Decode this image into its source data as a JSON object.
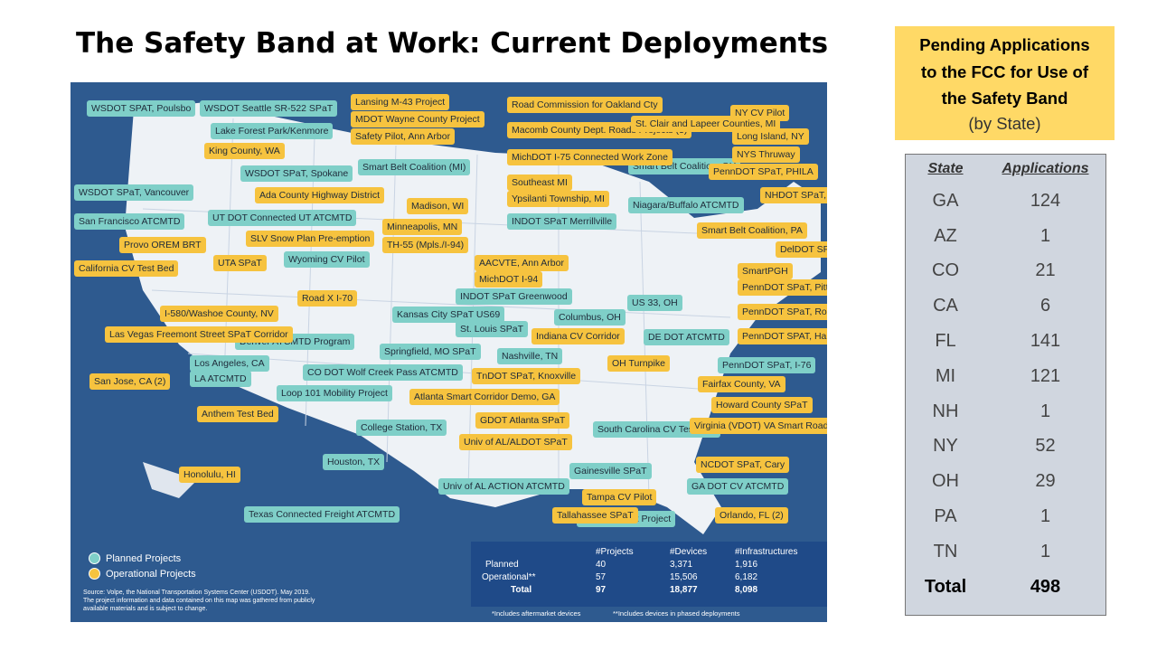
{
  "title": "The Safety Band at Work: Current Deployments",
  "map": {
    "labels_planned": [
      "WSDOT SPAT, Poulsbo",
      "WSDOT Seattle SR-522 SPaT",
      "Lake Forest Park/Kenmore",
      "WSDOT SPaT, Spokane",
      "WSDOT SPaT, Vancouver",
      "San Francisco ATCMTD",
      "UT DOT Connected UT ATCMTD",
      "Wyoming CV Pilot",
      "Smart Belt Coalition (MI)",
      "INDOT SPaT Merrillville",
      "Smart Belt Coalition, OH",
      "Niagara/Buffalo ATCMTD",
      "Kansas City SPaT US69",
      "INDOT SPaT Greenwood",
      "St. Louis SPaT",
      "Columbus, OH",
      "US 33, OH",
      "Denver ATCMTD Program",
      "Springfield, MO SPaT",
      "Nashville, TN",
      "Los Angeles, CA",
      "LA ATCMTD",
      "CO DOT Wolf Creek Pass ATCMTD",
      "Loop 101 Mobility Project",
      "College Station, TX",
      "Houston, TX",
      "Univ of AL ACTION ATCMTD",
      "South Carolina CV Test Bed",
      "Gainesville SPaT",
      "Texas Connected Freight ATCMTD",
      "Miami Freight Project",
      "GA DOT CV ATCMTD",
      "DE DOT ATCMTD",
      "PennDOT SPaT, I-76"
    ],
    "labels_operational": [
      "King County, WA",
      "Ada County Highway District",
      "Provo OREM BRT",
      "SLV Snow Plan Pre-emption",
      "UTA SPaT",
      "California CV Test Bed",
      "I-580/Washoe County, NV",
      "Road X I-70",
      "Las Vegas Freemont Street SPaT Corridor",
      "San Jose, CA (2)",
      "Anthem Test Bed",
      "Honolulu, HI",
      "Lansing M-43 Project",
      "MDOT Wayne County Project",
      "Safety Pilot, Ann Arbor",
      "Road Commission for Oakland Cty",
      "Macomb County Dept. Roads Projects (3)",
      "MichDOT I-75 Connected Work Zone",
      "Southeast MI",
      "Ypsilanti Township, MI",
      "Madison, WI",
      "Minneapolis, MN",
      "TH-55 (Mpls./I-94)",
      "AACVTE, Ann Arbor",
      "MichDOT I-94",
      "Indiana CV Corridor",
      "OH Turnpike",
      "TnDOT SPaT, Knoxville",
      "Atlanta Smart Corridor Demo, GA",
      "GDOT Atlanta SPaT",
      "Univ of AL/ALDOT SPaT",
      "Tampa CV Pilot",
      "Tallahassee SPaT",
      "Orlando, FL (2)",
      "NCDOT SPaT, Cary",
      "Virginia (VDOT) VA Smart Roads",
      "Howard County SPaT",
      "Fairfax County, VA",
      "PennDOT SPAT, Harrisburg",
      "PennDOT SPaT, Ross Township",
      "PennDOT SPaT, Pittsburgh",
      "SmartPGH",
      "DelDOT SPaT",
      "Smart Belt Coalition, PA",
      "NHDOT SPaT, Dover",
      "PennDOT SPaT, PHILA",
      "NYS Thruway",
      "Long Island, NY",
      "NY CV Pilot",
      "St. Clair and Lapeer Counties, MI"
    ],
    "legend_planned": "Planned Projects",
    "legend_operational": "Operational Projects",
    "source_line1": "Source: Volpe, the National Transportation Systems Center (USDOT). May 2019.",
    "source_line2": "The project information and data contained on this map was gathered from publicly",
    "source_line3": "available materials and is subject to change.",
    "stats": {
      "col_projects": "#Projects",
      "col_devices": "#Devices",
      "col_infra": "#Infrastructures",
      "rows": [
        {
          "label": "Planned",
          "projects": "40",
          "devices": "3,371",
          "infra": "1,916"
        },
        {
          "label": "Operational**",
          "projects": "57",
          "devices": "15,506",
          "infra": "6,182"
        },
        {
          "label": "Total",
          "projects": "97",
          "devices": "18,877",
          "infra": "8,098"
        }
      ],
      "foot1": "*Includes aftermarket devices",
      "foot2": "**Includes devices in phased deployments"
    }
  },
  "pending": {
    "line1": "Pending Applications",
    "line2": "to the FCC for Use of",
    "line3": "the Safety Band",
    "line4": "(by State)"
  },
  "state_table": {
    "col_state": "State",
    "col_apps": "Applications",
    "rows": [
      {
        "state": "GA",
        "apps": "124"
      },
      {
        "state": "AZ",
        "apps": "1"
      },
      {
        "state": "CO",
        "apps": "21"
      },
      {
        "state": "CA",
        "apps": "6"
      },
      {
        "state": "FL",
        "apps": "141"
      },
      {
        "state": "MI",
        "apps": "121"
      },
      {
        "state": "NH",
        "apps": "1"
      },
      {
        "state": "NY",
        "apps": "52"
      },
      {
        "state": "OH",
        "apps": "29"
      },
      {
        "state": "PA",
        "apps": "1"
      },
      {
        "state": "TN",
        "apps": "1"
      }
    ],
    "total_label": "Total",
    "total_value": "498"
  }
}
